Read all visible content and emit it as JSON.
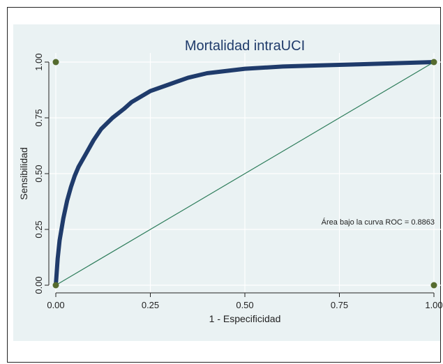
{
  "chart_data": {
    "type": "line",
    "title": "Mortalidad intraUCI",
    "xlabel": "1 - Especificidad",
    "ylabel": "Sensibilidad",
    "xlim": [
      0,
      1
    ],
    "ylim": [
      0,
      1
    ],
    "x_ticks": [
      "0.00",
      "0.25",
      "0.50",
      "0.75",
      "1.00"
    ],
    "y_ticks": [
      "0.00",
      "0.25",
      "0.50",
      "0.75",
      "1.00"
    ],
    "annotation": "Área bajo la curva ROC = 0.8863",
    "grid": true,
    "colors": {
      "curve": "#1f3b6b",
      "reference": "#2e7d5b",
      "markers": "#556b2f",
      "background": "#eaf2f3"
    },
    "series": [
      {
        "role": "roc-curve",
        "x": [
          0,
          0.005,
          0.01,
          0.02,
          0.03,
          0.04,
          0.05,
          0.06,
          0.08,
          0.1,
          0.12,
          0.15,
          0.18,
          0.2,
          0.25,
          0.3,
          0.35,
          0.4,
          0.5,
          0.6,
          0.7,
          0.8,
          0.9,
          1.0
        ],
        "y": [
          0,
          0.12,
          0.2,
          0.3,
          0.38,
          0.44,
          0.49,
          0.53,
          0.59,
          0.65,
          0.7,
          0.75,
          0.79,
          0.82,
          0.87,
          0.9,
          0.93,
          0.95,
          0.97,
          0.98,
          0.985,
          0.99,
          0.995,
          1.0
        ]
      },
      {
        "role": "reference-line",
        "x": [
          0,
          1
        ],
        "y": [
          0,
          1
        ]
      }
    ],
    "corner_markers": [
      {
        "x": 0,
        "y": 1
      },
      {
        "x": 0,
        "y": 0
      },
      {
        "x": 1,
        "y": 1
      },
      {
        "x": 1,
        "y": 0
      }
    ]
  }
}
